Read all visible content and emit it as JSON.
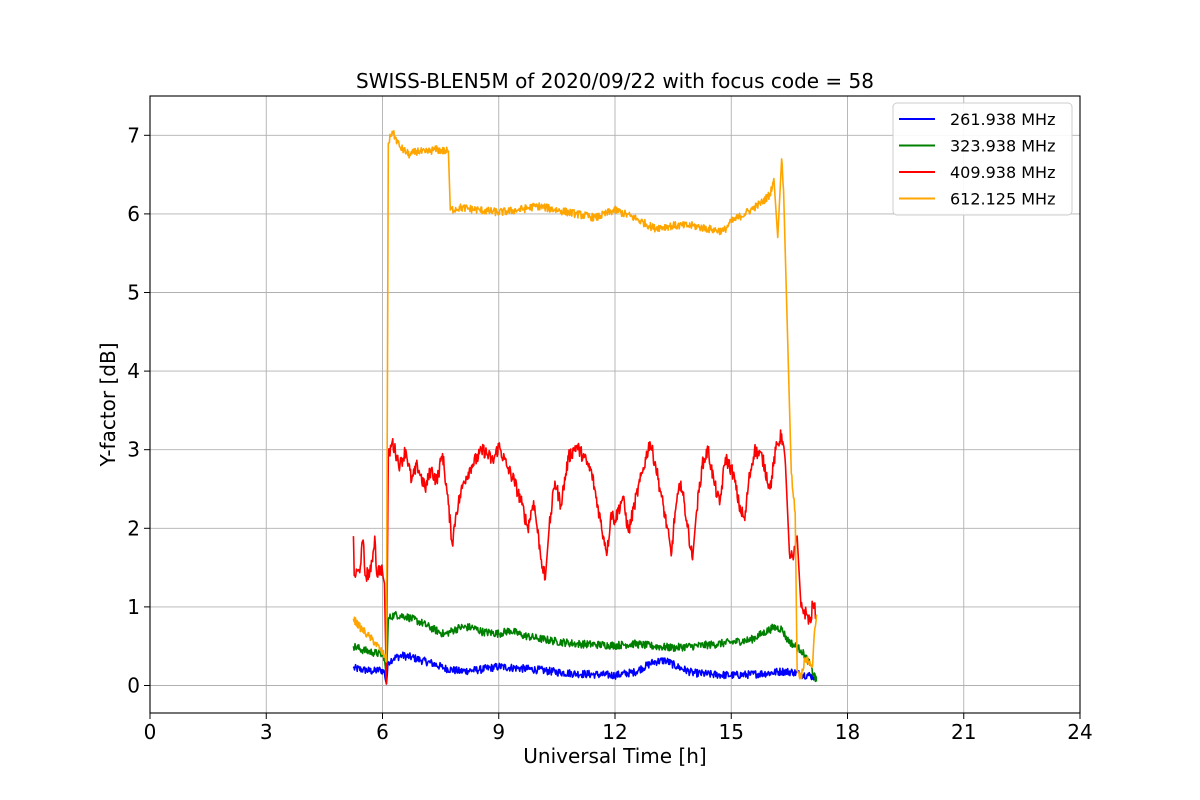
{
  "chart_data": {
    "type": "line",
    "title": "SWISS-BLEN5M of 2020/09/22 with focus code = 58",
    "xlabel": "Universal Time [h]",
    "ylabel": "Y-factor [dB]",
    "xlim": [
      0,
      24
    ],
    "ylim": [
      -0.35,
      7.5
    ],
    "xticks": [
      0,
      3,
      6,
      9,
      12,
      15,
      18,
      21,
      24
    ],
    "xtick_labels": [
      "0",
      "3",
      "6",
      "9",
      "12",
      "15",
      "18",
      "21",
      "24"
    ],
    "yticks": [
      0,
      1,
      2,
      3,
      4,
      5,
      6,
      7
    ],
    "ytick_labels": [
      "0",
      "1",
      "2",
      "3",
      "4",
      "5",
      "6",
      "7"
    ],
    "grid": true,
    "legend_position": "top-right",
    "series": [
      {
        "name": "261.938 MHz",
        "color": "#0000ff",
        "points": [
          [
            5.25,
            0.22
          ],
          [
            5.5,
            0.2
          ],
          [
            5.75,
            0.18
          ],
          [
            5.95,
            0.2
          ],
          [
            6.05,
            0.17
          ],
          [
            6.1,
            0.02
          ],
          [
            6.15,
            0.3
          ],
          [
            6.3,
            0.35
          ],
          [
            6.5,
            0.38
          ],
          [
            6.75,
            0.36
          ],
          [
            7.0,
            0.32
          ],
          [
            7.3,
            0.28
          ],
          [
            7.6,
            0.22
          ],
          [
            8.0,
            0.18
          ],
          [
            8.5,
            0.2
          ],
          [
            9.0,
            0.24
          ],
          [
            9.5,
            0.22
          ],
          [
            10.0,
            0.2
          ],
          [
            10.5,
            0.17
          ],
          [
            11.0,
            0.15
          ],
          [
            11.5,
            0.14
          ],
          [
            12.0,
            0.13
          ],
          [
            12.5,
            0.17
          ],
          [
            13.0,
            0.3
          ],
          [
            13.3,
            0.32
          ],
          [
            13.6,
            0.24
          ],
          [
            14.0,
            0.16
          ],
          [
            14.5,
            0.14
          ],
          [
            15.0,
            0.13
          ],
          [
            15.5,
            0.14
          ],
          [
            16.0,
            0.16
          ],
          [
            16.3,
            0.18
          ],
          [
            16.6,
            0.17
          ],
          [
            16.8,
            0.14
          ],
          [
            17.0,
            0.13
          ],
          [
            17.2,
            0.1
          ]
        ],
        "noise": 0.05
      },
      {
        "name": "323.938 MHz",
        "color": "#008000",
        "points": [
          [
            5.25,
            0.5
          ],
          [
            5.5,
            0.45
          ],
          [
            5.75,
            0.42
          ],
          [
            5.95,
            0.4
          ],
          [
            6.05,
            0.36
          ],
          [
            6.1,
            0.05
          ],
          [
            6.15,
            0.85
          ],
          [
            6.3,
            0.9
          ],
          [
            6.6,
            0.88
          ],
          [
            7.0,
            0.8
          ],
          [
            7.3,
            0.72
          ],
          [
            7.6,
            0.65
          ],
          [
            8.0,
            0.74
          ],
          [
            8.3,
            0.74
          ],
          [
            8.6,
            0.68
          ],
          [
            9.0,
            0.66
          ],
          [
            9.3,
            0.7
          ],
          [
            9.6,
            0.64
          ],
          [
            10.0,
            0.6
          ],
          [
            10.5,
            0.56
          ],
          [
            11.0,
            0.53
          ],
          [
            11.5,
            0.52
          ],
          [
            12.0,
            0.51
          ],
          [
            12.5,
            0.53
          ],
          [
            13.0,
            0.5
          ],
          [
            13.5,
            0.48
          ],
          [
            14.0,
            0.5
          ],
          [
            14.5,
            0.52
          ],
          [
            15.0,
            0.55
          ],
          [
            15.5,
            0.58
          ],
          [
            15.8,
            0.66
          ],
          [
            16.1,
            0.74
          ],
          [
            16.3,
            0.72
          ],
          [
            16.45,
            0.58
          ],
          [
            16.6,
            0.52
          ],
          [
            16.8,
            0.45
          ],
          [
            17.0,
            0.3
          ],
          [
            17.2,
            0.05
          ]
        ],
        "noise": 0.05
      },
      {
        "name": "409.938 MHz",
        "color": "#ff0000",
        "points": [
          [
            5.25,
            1.9
          ],
          [
            5.27,
            1.4
          ],
          [
            5.4,
            1.45
          ],
          [
            5.5,
            1.85
          ],
          [
            5.55,
            1.4
          ],
          [
            5.7,
            1.45
          ],
          [
            5.8,
            1.9
          ],
          [
            5.85,
            1.42
          ],
          [
            5.95,
            1.5
          ],
          [
            6.0,
            1.45
          ],
          [
            6.05,
            1.3
          ],
          [
            6.1,
            0.02
          ],
          [
            6.15,
            2.9
          ],
          [
            6.25,
            3.1
          ],
          [
            6.45,
            2.8
          ],
          [
            6.6,
            3.0
          ],
          [
            6.75,
            2.6
          ],
          [
            6.9,
            2.8
          ],
          [
            7.1,
            2.5
          ],
          [
            7.25,
            2.75
          ],
          [
            7.4,
            2.6
          ],
          [
            7.55,
            2.95
          ],
          [
            7.7,
            2.3
          ],
          [
            7.8,
            1.8
          ],
          [
            7.9,
            2.2
          ],
          [
            8.1,
            2.6
          ],
          [
            8.3,
            2.8
          ],
          [
            8.6,
            3.0
          ],
          [
            8.85,
            2.85
          ],
          [
            9.0,
            3.05
          ],
          [
            9.2,
            2.8
          ],
          [
            9.4,
            2.6
          ],
          [
            9.6,
            2.3
          ],
          [
            9.75,
            2.0
          ],
          [
            9.9,
            2.35
          ],
          [
            10.1,
            1.6
          ],
          [
            10.2,
            1.35
          ],
          [
            10.3,
            2.0
          ],
          [
            10.45,
            2.6
          ],
          [
            10.6,
            2.3
          ],
          [
            10.8,
            2.9
          ],
          [
            11.0,
            3.05
          ],
          [
            11.2,
            2.9
          ],
          [
            11.4,
            2.7
          ],
          [
            11.55,
            2.3
          ],
          [
            11.7,
            1.9
          ],
          [
            11.8,
            1.7
          ],
          [
            11.9,
            2.2
          ],
          [
            12.0,
            2.1
          ],
          [
            12.2,
            2.4
          ],
          [
            12.35,
            1.95
          ],
          [
            12.5,
            2.3
          ],
          [
            12.7,
            2.7
          ],
          [
            12.9,
            3.1
          ],
          [
            13.05,
            2.8
          ],
          [
            13.2,
            2.4
          ],
          [
            13.35,
            2.0
          ],
          [
            13.45,
            1.65
          ],
          [
            13.55,
            2.2
          ],
          [
            13.7,
            2.6
          ],
          [
            13.85,
            2.1
          ],
          [
            14.0,
            1.6
          ],
          [
            14.1,
            2.2
          ],
          [
            14.25,
            2.8
          ],
          [
            14.4,
            3.0
          ],
          [
            14.55,
            2.6
          ],
          [
            14.7,
            2.3
          ],
          [
            14.85,
            2.9
          ],
          [
            15.05,
            2.7
          ],
          [
            15.2,
            2.3
          ],
          [
            15.35,
            2.1
          ],
          [
            15.45,
            2.6
          ],
          [
            15.6,
            3.0
          ],
          [
            15.8,
            2.9
          ],
          [
            16.0,
            2.5
          ],
          [
            16.15,
            3.0
          ],
          [
            16.3,
            3.2
          ],
          [
            16.4,
            2.8
          ],
          [
            16.5,
            1.7
          ],
          [
            16.6,
            1.6
          ],
          [
            16.7,
            1.9
          ],
          [
            16.8,
            1.0
          ],
          [
            16.95,
            0.9
          ],
          [
            17.05,
            0.8
          ],
          [
            17.1,
            1.05
          ],
          [
            17.2,
            0.9
          ]
        ],
        "noise": 0.09
      },
      {
        "name": "612.125 MHz",
        "color": "#ffa500",
        "points": [
          [
            5.25,
            0.85
          ],
          [
            5.4,
            0.75
          ],
          [
            5.6,
            0.65
          ],
          [
            5.8,
            0.55
          ],
          [
            5.95,
            0.45
          ],
          [
            6.05,
            0.38
          ],
          [
            6.1,
            0.3
          ],
          [
            6.15,
            6.9
          ],
          [
            6.25,
            7.05
          ],
          [
            6.45,
            6.85
          ],
          [
            6.7,
            6.75
          ],
          [
            6.9,
            6.8
          ],
          [
            7.1,
            6.78
          ],
          [
            7.35,
            6.82
          ],
          [
            7.6,
            6.8
          ],
          [
            7.7,
            6.8
          ],
          [
            7.75,
            6.05
          ],
          [
            8.0,
            6.08
          ],
          [
            8.5,
            6.05
          ],
          [
            9.0,
            6.02
          ],
          [
            9.5,
            6.05
          ],
          [
            10.0,
            6.1
          ],
          [
            10.5,
            6.05
          ],
          [
            11.0,
            6.0
          ],
          [
            11.5,
            5.95
          ],
          [
            12.0,
            6.05
          ],
          [
            12.5,
            5.95
          ],
          [
            13.0,
            5.82
          ],
          [
            13.5,
            5.85
          ],
          [
            14.0,
            5.85
          ],
          [
            14.5,
            5.8
          ],
          [
            14.8,
            5.78
          ],
          [
            15.0,
            5.9
          ],
          [
            15.5,
            6.05
          ],
          [
            15.8,
            6.15
          ],
          [
            16.0,
            6.25
          ],
          [
            16.1,
            6.45
          ],
          [
            16.2,
            5.7
          ],
          [
            16.3,
            6.7
          ],
          [
            16.35,
            6.3
          ],
          [
            16.45,
            4.5
          ],
          [
            16.55,
            2.7
          ],
          [
            16.65,
            2.2
          ],
          [
            16.7,
            0.2
          ],
          [
            16.8,
            0.1
          ],
          [
            16.9,
            0.35
          ],
          [
            17.0,
            0.3
          ],
          [
            17.1,
            0.25
          ],
          [
            17.15,
            0.7
          ],
          [
            17.2,
            0.9
          ]
        ],
        "noise": 0.05
      }
    ]
  }
}
